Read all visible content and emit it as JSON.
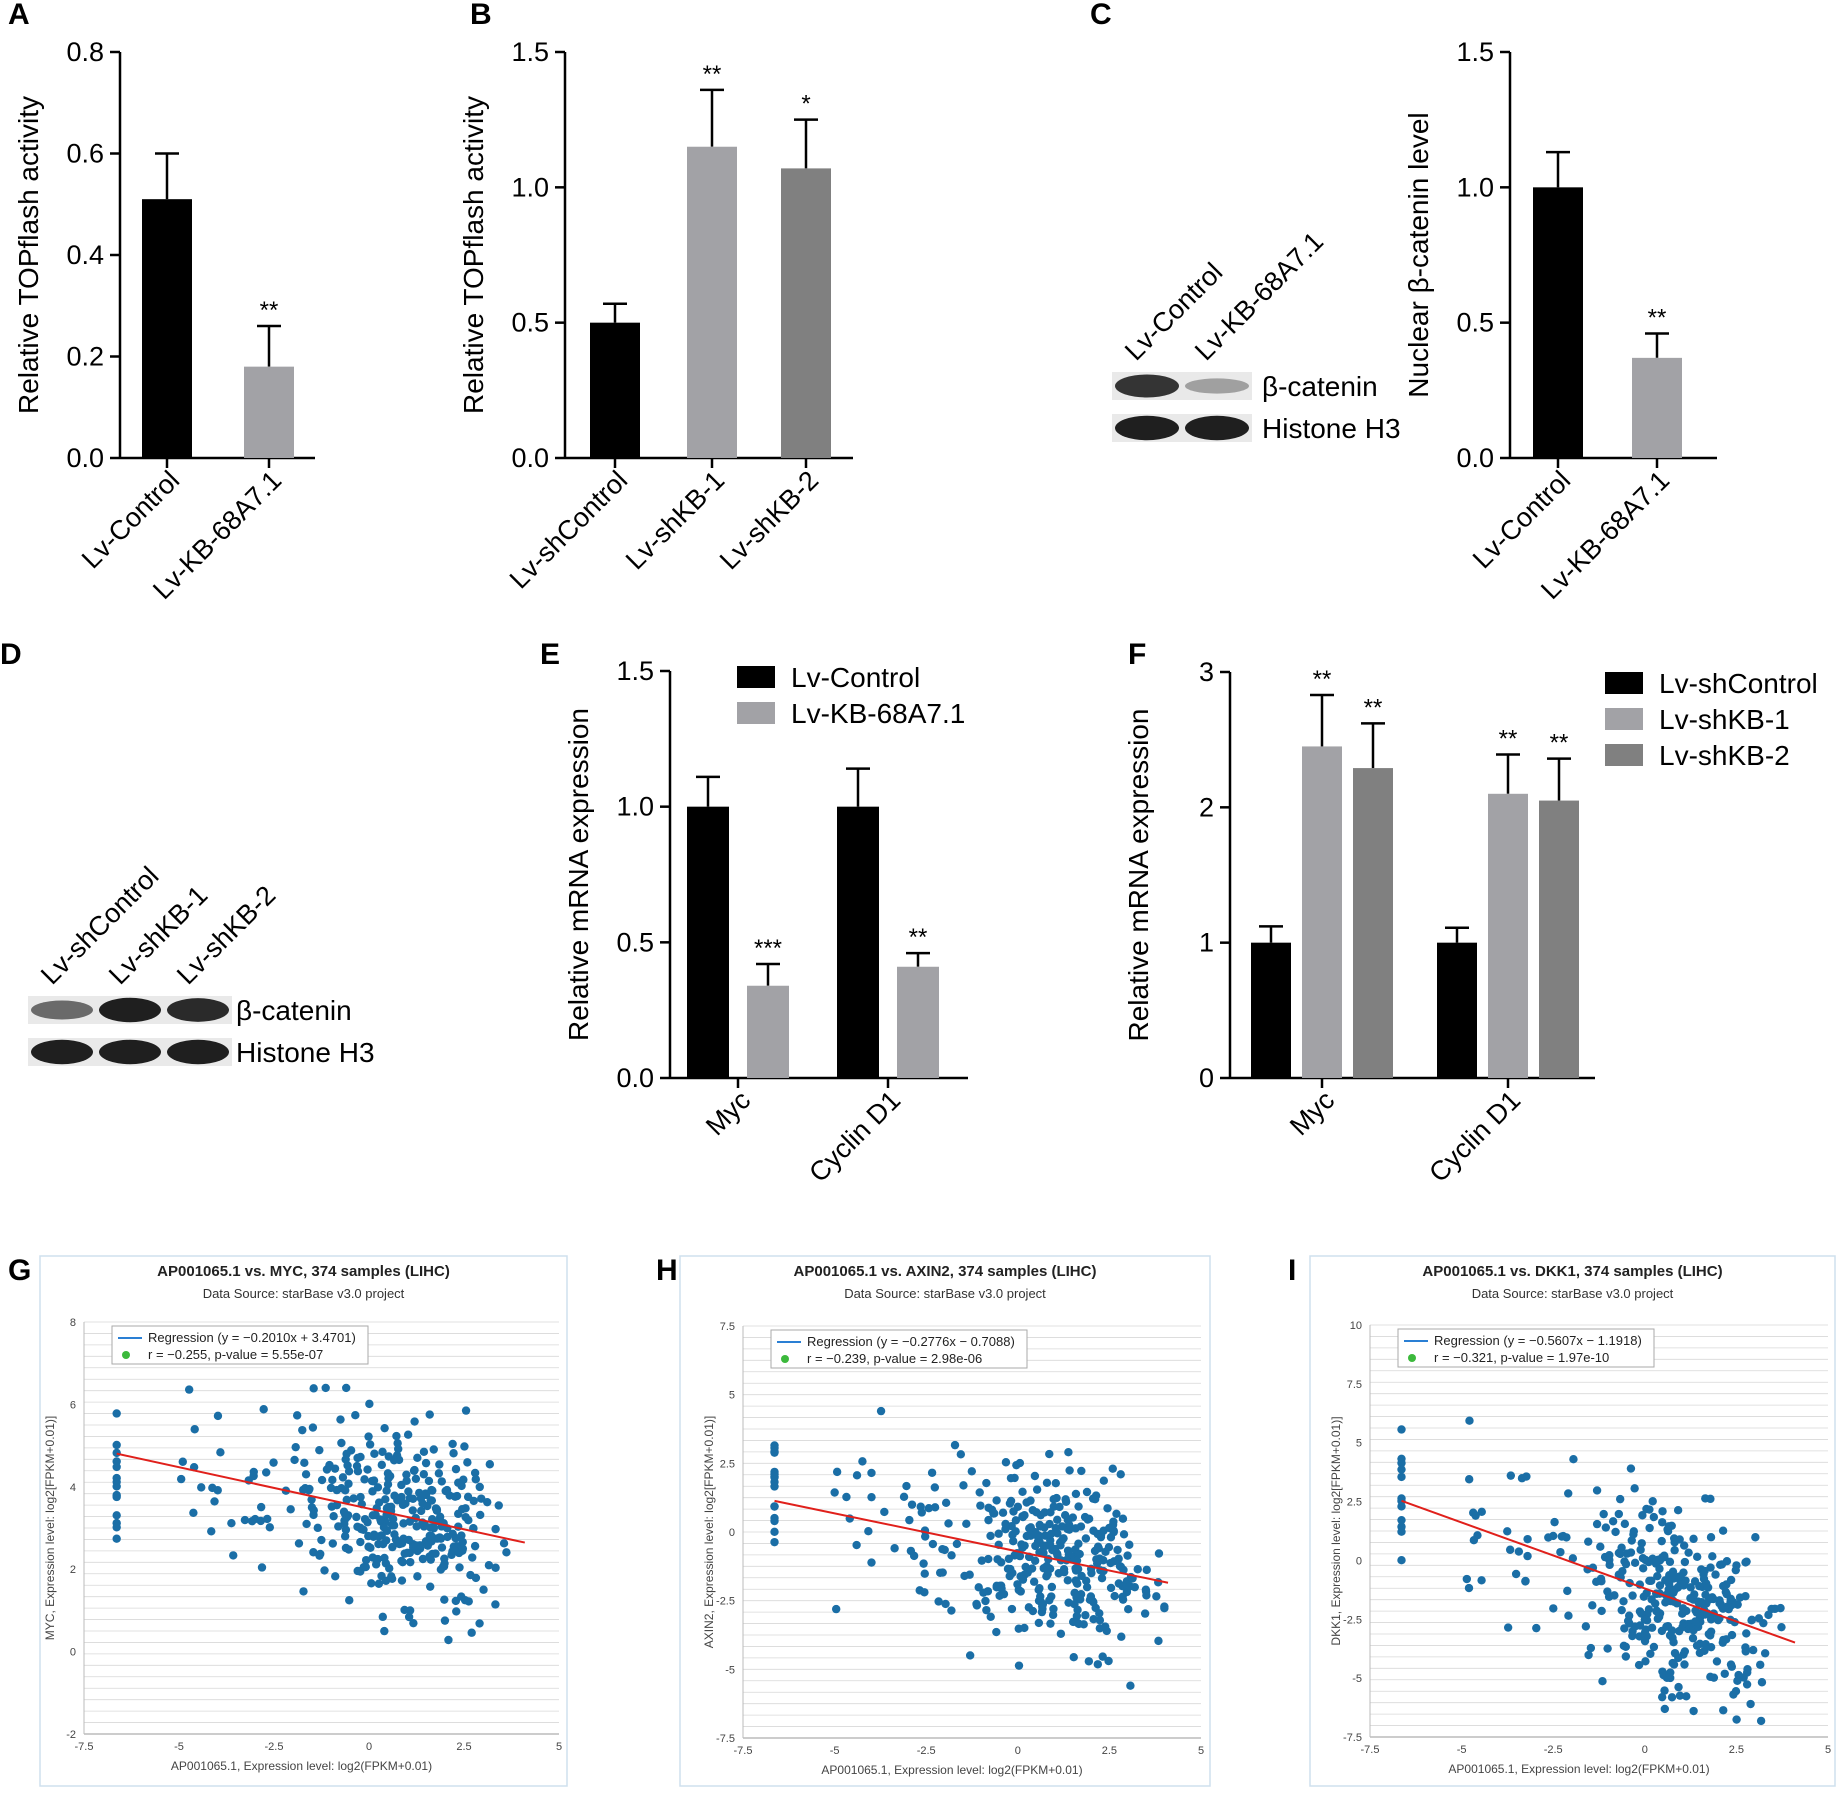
{
  "colors": {
    "black": "#000000",
    "light_gray": "#a2a2a6",
    "dark_gray": "#808080",
    "scatter_point": "#1a6ea6",
    "regression": "#e0201b",
    "scatter_bg": "#ffffff",
    "scatter_grid": "#d8d8d8",
    "blue_line": "#2a7fd4",
    "green_dot": "#3cb93c"
  },
  "chart_data": [
    {
      "panel": "A",
      "type": "bar",
      "ylabel": "Relative TOPflash activity",
      "ylim": [
        0,
        0.8
      ],
      "yticks": [
        "0.0",
        "0.2",
        "0.4",
        "0.6",
        "0.8"
      ],
      "categories": [
        "Lv-Control",
        "Lv-KB-68A7.1"
      ],
      "values": [
        0.51,
        0.18
      ],
      "errors": [
        0.09,
        0.08
      ],
      "significance": [
        "",
        "**"
      ],
      "bar_colors": [
        "black",
        "light_gray"
      ]
    },
    {
      "panel": "B",
      "type": "bar",
      "ylabel": "Relative TOPflash activity",
      "ylim": [
        0,
        1.5
      ],
      "yticks": [
        "0.0",
        "0.5",
        "1.0",
        "1.5"
      ],
      "categories": [
        "Lv-shControl",
        "Lv-shKB-1",
        "Lv-shKB-2"
      ],
      "values": [
        0.5,
        1.15,
        1.07
      ],
      "errors": [
        0.07,
        0.21,
        0.18
      ],
      "significance": [
        "",
        "**",
        "*"
      ],
      "bar_colors": [
        "black",
        "light_gray",
        "dark_gray"
      ]
    },
    {
      "panel": "C",
      "type": "bar",
      "ylabel": "Nuclear β-catenin level",
      "ylim": [
        0,
        1.5
      ],
      "yticks": [
        "0.0",
        "0.5",
        "1.0",
        "1.5"
      ],
      "categories": [
        "Lv-Control",
        "Lv-KB-68A7.1"
      ],
      "values": [
        1.0,
        0.37
      ],
      "errors": [
        0.13,
        0.09
      ],
      "significance": [
        "",
        "**"
      ],
      "bar_colors": [
        "black",
        "light_gray"
      ]
    },
    {
      "panel": "E",
      "type": "bar",
      "ylabel": "Relative mRNA expression",
      "ylim": [
        0,
        1.5
      ],
      "yticks": [
        "0.0",
        "0.5",
        "1.0",
        "1.5"
      ],
      "categories": [
        "Myc",
        "Cyclin D1"
      ],
      "series": [
        {
          "name": "Lv-Control",
          "values": [
            1.0,
            1.0
          ],
          "errors": [
            0.11,
            0.14
          ],
          "significance": [
            "",
            ""
          ],
          "color": "black"
        },
        {
          "name": "Lv-KB-68A7.1",
          "values": [
            0.34,
            0.41
          ],
          "errors": [
            0.08,
            0.05
          ],
          "significance": [
            "***",
            "**"
          ],
          "color": "light_gray"
        }
      ]
    },
    {
      "panel": "F",
      "type": "bar",
      "ylabel": "Relative mRNA expression",
      "ylim": [
        0,
        3
      ],
      "yticks": [
        "0",
        "1",
        "2",
        "3"
      ],
      "categories": [
        "Myc",
        "Cyclin D1"
      ],
      "series": [
        {
          "name": "Lv-shControl",
          "values": [
            1.0,
            1.0
          ],
          "errors": [
            0.12,
            0.11
          ],
          "significance": [
            "",
            ""
          ],
          "color": "black"
        },
        {
          "name": "Lv-shKB-1",
          "values": [
            2.45,
            2.1
          ],
          "errors": [
            0.38,
            0.29
          ],
          "significance": [
            "**",
            "**"
          ],
          "color": "light_gray"
        },
        {
          "name": "Lv-shKB-2",
          "values": [
            2.29,
            2.05
          ],
          "errors": [
            0.33,
            0.31
          ],
          "significance": [
            "**",
            "**"
          ],
          "color": "dark_gray"
        }
      ]
    },
    {
      "panel": "G",
      "type": "scatter",
      "title": "AP001065.1 vs. MYC, 374 samples (LIHC)",
      "subtitle": "Data Source: starBase v3.0 project",
      "xlabel": "AP001065.1, Expression level: log2(FPKM+0.01)",
      "ylabel": "MYC, Expression level: log2[FPKM+0.01)]",
      "xlim": [
        -7.5,
        5
      ],
      "ylim": [
        -2,
        8
      ],
      "xticks": [
        "-7.5",
        "-5",
        "-2.5",
        "0",
        "2.5",
        "5"
      ],
      "yticks": [
        "-2",
        "0",
        "2",
        "4",
        "6",
        "8"
      ],
      "regression_label": "Regression (y = −0.2010x + 3.4701)",
      "stats_label": "r = −0.255, p-value = 5.55e-07",
      "slope": -0.201,
      "intercept": 3.4701,
      "n_samples": 374
    },
    {
      "panel": "H",
      "type": "scatter",
      "title": "AP001065.1 vs. AXIN2, 374 samples (LIHC)",
      "subtitle": "Data Source: starBase v3.0 project",
      "xlabel": "AP001065.1, Expression level: log2(FPKM+0.01)",
      "ylabel": "AXIN2, Expression level: log2[FPKM+0.01)]",
      "xlim": [
        -7.5,
        5
      ],
      "ylim": [
        -7.5,
        7.5
      ],
      "xticks": [
        "-7.5",
        "-5",
        "-2.5",
        "0",
        "2.5",
        "5"
      ],
      "yticks": [
        "-7.5",
        "-5",
        "-2.5",
        "0",
        "2.5",
        "5",
        "7.5"
      ],
      "regression_label": "Regression (y = −0.2776x − 0.7088)",
      "stats_label": "r = −0.239, p-value = 2.98e-06",
      "slope": -0.2776,
      "intercept": -0.7088,
      "n_samples": 374
    },
    {
      "panel": "I",
      "type": "scatter",
      "title": "AP001065.1 vs. DKK1, 374 samples (LIHC)",
      "subtitle": "Data Source: starBase v3.0 project",
      "xlabel": "AP001065.1, Expression level: log2(FPKM+0.01)",
      "ylabel": "DKK1, Expression level: log2[FPKM+0.01)]",
      "xlim": [
        -7.5,
        5
      ],
      "ylim": [
        -7.5,
        10
      ],
      "xticks": [
        "-7.5",
        "-5",
        "-2.5",
        "0",
        "2.5",
        "5"
      ],
      "yticks": [
        "-7.5",
        "-5",
        "-2.5",
        "0",
        "2.5",
        "5",
        "7.5",
        "10"
      ],
      "regression_label": "Regression (y = −0.5607x − 1.1918)",
      "stats_label": "r = −0.321, p-value = 1.97e-10",
      "slope": -0.5607,
      "intercept": -1.1918,
      "n_samples": 374
    }
  ],
  "blots": {
    "C": {
      "lanes": [
        "Lv-Control",
        "Lv-KB-68A7.1"
      ],
      "bands": [
        "β-catenin",
        "Histone H3"
      ],
      "intensity": [
        [
          0.85,
          0.35
        ],
        [
          0.95,
          0.95
        ]
      ]
    },
    "D": {
      "lanes": [
        "Lv-shControl",
        "Lv-shKB-1",
        "Lv-shKB-2"
      ],
      "bands": [
        "β-catenin",
        "Histone H3"
      ],
      "intensity": [
        [
          0.6,
          0.95,
          0.9
        ],
        [
          0.95,
          0.95,
          0.95
        ]
      ]
    }
  },
  "panel_letters": [
    "A",
    "B",
    "C",
    "D",
    "E",
    "F",
    "G",
    "H",
    "I"
  ]
}
